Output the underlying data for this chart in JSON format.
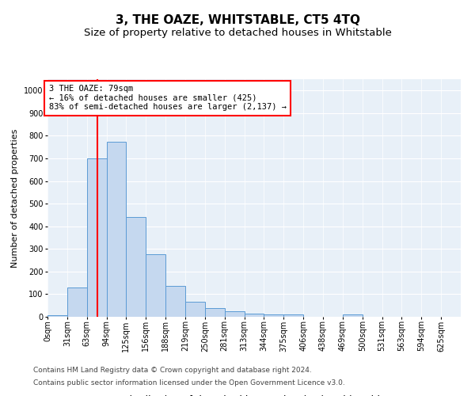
{
  "title": "3, THE OAZE, WHITSTABLE, CT5 4TQ",
  "subtitle": "Size of property relative to detached houses in Whitstable",
  "xlabel": "Distribution of detached houses by size in Whitstable",
  "ylabel": "Number of detached properties",
  "bin_labels": [
    "0sqm",
    "31sqm",
    "63sqm",
    "94sqm",
    "125sqm",
    "156sqm",
    "188sqm",
    "219sqm",
    "250sqm",
    "281sqm",
    "313sqm",
    "344sqm",
    "375sqm",
    "406sqm",
    "438sqm",
    "469sqm",
    "500sqm",
    "531sqm",
    "563sqm",
    "594sqm",
    "625sqm"
  ],
  "bar_values": [
    8,
    128,
    700,
    775,
    440,
    275,
    135,
    68,
    40,
    25,
    15,
    12,
    10,
    0,
    0,
    10,
    0,
    0,
    0,
    0,
    0
  ],
  "bar_color": "#c5d8ef",
  "bar_edge_color": "#5b9bd5",
  "vline_color": "red",
  "vline_x_index": 2.55,
  "annotation_text": "3 THE OAZE: 79sqm\n← 16% of detached houses are smaller (425)\n83% of semi-detached houses are larger (2,137) →",
  "annotation_box_facecolor": "white",
  "annotation_box_edgecolor": "red",
  "ylim": [
    0,
    1050
  ],
  "yticks": [
    0,
    100,
    200,
    300,
    400,
    500,
    600,
    700,
    800,
    900,
    1000
  ],
  "footer_line1": "Contains HM Land Registry data © Crown copyright and database right 2024.",
  "footer_line2": "Contains public sector information licensed under the Open Government Licence v3.0.",
  "bg_color": "#ffffff",
  "plot_bg_color": "#e8f0f8",
  "grid_color": "white",
  "title_fontsize": 11,
  "subtitle_fontsize": 9.5,
  "xlabel_fontsize": 9,
  "ylabel_fontsize": 8,
  "tick_fontsize": 7,
  "annotation_fontsize": 7.5,
  "footer_fontsize": 6.5,
  "bin_width": 31,
  "n_bars": 21
}
